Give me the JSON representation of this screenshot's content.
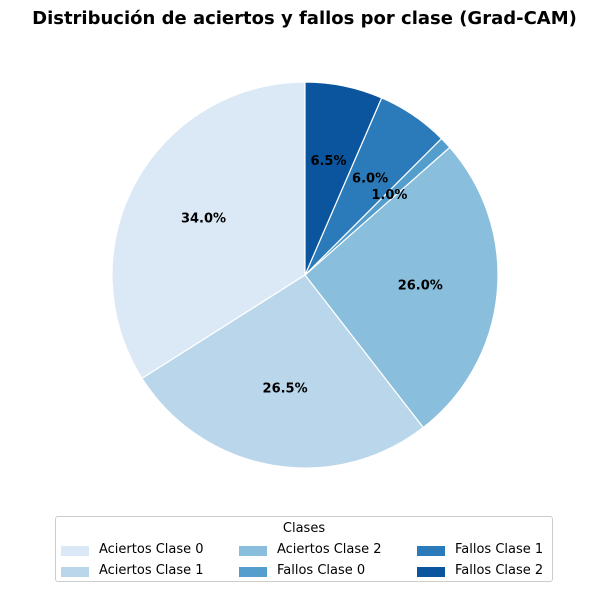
{
  "chart_data": {
    "type": "pie",
    "title": "Distribución de aciertos y fallos por clase (Grad-CAM)",
    "legend_title": "Clases",
    "legend_placement": "bottom",
    "slices": [
      {
        "label": "Aciertos Clase 0",
        "value": 34.0,
        "pct_label": "34.0%",
        "color": "#dbe9f6"
      },
      {
        "label": "Aciertos Clase 1",
        "value": 26.5,
        "pct_label": "26.5%",
        "color": "#bad6eb"
      },
      {
        "label": "Aciertos Clase 2",
        "value": 26.0,
        "pct_label": "26.0%",
        "color": "#89bedc"
      },
      {
        "label": "Fallos Clase 0",
        "value": 1.0,
        "pct_label": "1.0%",
        "color": "#539ecd"
      },
      {
        "label": "Fallos Clase 1",
        "value": 6.0,
        "pct_label": "6.0%",
        "color": "#2b7bba"
      },
      {
        "label": "Fallos Clase 2",
        "value": 6.5,
        "pct_label": "6.5%",
        "color": "#0b559f"
      }
    ]
  }
}
